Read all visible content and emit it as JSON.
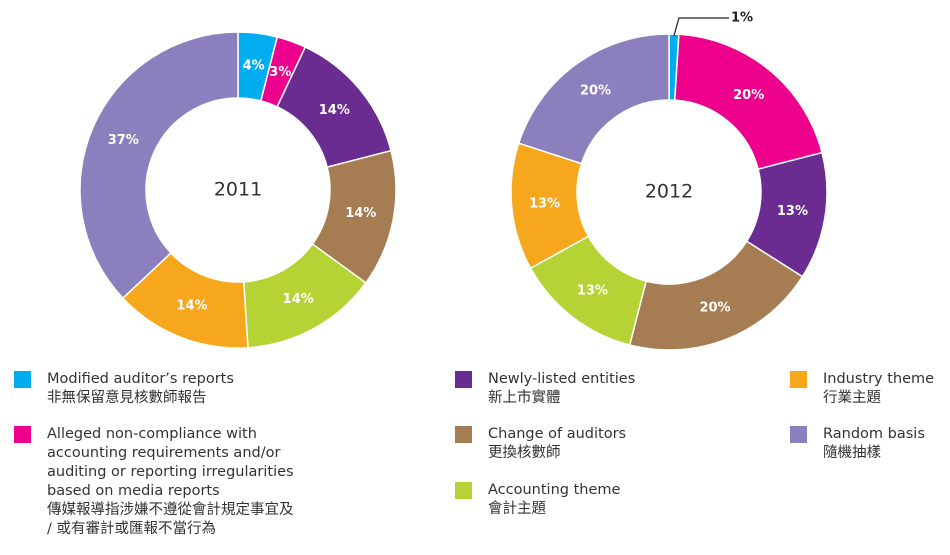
{
  "chart_data": [
    {
      "type": "pie",
      "donut": true,
      "title": "2011",
      "categories": [
        "Modified auditor’s reports",
        "Alleged non-compliance with accounting requirements and/or auditing or reporting irregularities based on media reports",
        "Newly-listed entities",
        "Change of auditors",
        "Accounting theme",
        "Industry theme",
        "Random basis"
      ],
      "categories_zh": [
        "非無保留意見核數師報告",
        "傳媒報導指涉嫌不遵從會計規定事宜及 / 或有審計或匯報不當行為",
        "新上市實體",
        "更換核數師",
        "會計主題",
        "行業主題",
        "隨機抽樣"
      ],
      "colors": [
        "#00aeef",
        "#ec008c",
        "#6a2c91",
        "#a67c52",
        "#b5d334",
        "#f7a71c",
        "#8b80bd"
      ],
      "values": [
        4,
        3,
        14,
        14,
        14,
        14,
        37
      ],
      "value_labels": [
        "4%",
        "3%",
        "14%",
        "14%",
        "14%",
        "14%",
        "37%"
      ]
    },
    {
      "type": "pie",
      "donut": true,
      "title": "2012",
      "colors": [
        "#00aeef",
        "#ec008c",
        "#6a2c91",
        "#a67c52",
        "#b5d334",
        "#f7a71c",
        "#8b80bd"
      ],
      "values": [
        1,
        20,
        13,
        20,
        13,
        13,
        20
      ],
      "value_labels": [
        "1%",
        "20%",
        "13%",
        "20%",
        "13%",
        "13%",
        "20%"
      ]
    }
  ]
}
